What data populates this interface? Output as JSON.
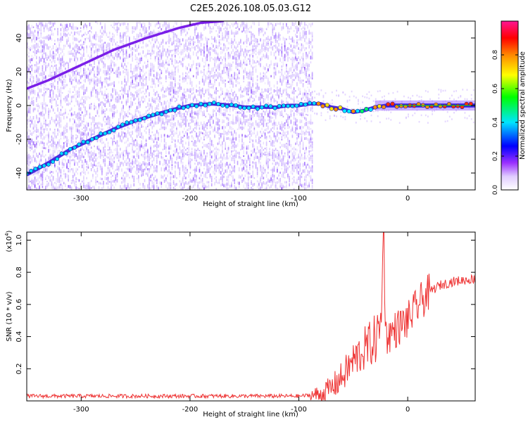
{
  "title": "C2E5.2026.108.05.03.G12",
  "chart_data": [
    {
      "type": "heatmap",
      "xlabel": "Height of straight line (km)",
      "ylabel": "Frequency (Hz)",
      "xlim": [
        -350,
        62
      ],
      "ylim": [
        -50,
        50
      ],
      "x_ticks": [
        -300,
        -200,
        -100,
        0
      ],
      "y_ticks": [
        -40,
        -20,
        0,
        20,
        40
      ],
      "colorbar": {
        "label": "Normalized spectral amplitude",
        "range": [
          0,
          1
        ],
        "ticks": [
          0.0,
          0.2,
          0.4,
          0.6,
          0.8
        ],
        "colors": [
          "#ffffff",
          "#c9a8ff",
          "#8a2be2",
          "#0000ff",
          "#00e5ff",
          "#00ff00",
          "#ffff00",
          "#ff8800",
          "#ff0000",
          "#ff1493"
        ]
      },
      "main_trace": {
        "x": [
          -350,
          -330,
          -310,
          -290,
          -270,
          -250,
          -230,
          -210,
          -200,
          -190,
          -180,
          -170,
          -160,
          -150,
          -140,
          -130,
          -120,
          -110,
          -100,
          -90,
          -80,
          -70,
          -60,
          -50,
          -40,
          -30,
          -20,
          -10,
          0,
          20,
          40,
          62
        ],
        "y": [
          -41,
          -34,
          -26,
          -20,
          -14,
          -9,
          -5,
          -1.5,
          0,
          0.5,
          1,
          0.5,
          0,
          -1,
          -1,
          -1,
          -1,
          0,
          0,
          1,
          1,
          -1,
          -2,
          -4,
          -3,
          -1,
          0,
          0,
          0,
          0,
          0,
          0
        ]
      },
      "alias_trace": {
        "x": [
          -350,
          -330,
          -300,
          -270,
          -240,
          -210,
          -190,
          -170
        ],
        "y": [
          10,
          15,
          24,
          33,
          40,
          46,
          49,
          50
        ]
      }
    },
    {
      "type": "line",
      "xlabel": "Height of straight line (km)",
      "ylabel": "SNR (10 * v/v)",
      "y_multiplier": "(x10",
      "y_multiplier_exp": "4",
      "y_multiplier_close": ")",
      "xlim": [
        -350,
        62
      ],
      "ylim": [
        0,
        1.05
      ],
      "x_ticks": [
        -300,
        -200,
        -100,
        0
      ],
      "y_ticks": [
        0.2,
        0.4,
        0.6,
        0.8,
        1.0
      ],
      "line_color": "#ee3333",
      "series": [
        {
          "x": [
            -350,
            -300,
            -250,
            -200,
            -150,
            -100,
            -80,
            -70,
            -60,
            -50,
            -40,
            -30,
            -25,
            -22,
            -20,
            -10,
            0,
            10,
            20,
            30,
            40,
            50,
            62
          ],
          "y": [
            0.03,
            0.03,
            0.03,
            0.03,
            0.03,
            0.03,
            0.04,
            0.08,
            0.15,
            0.25,
            0.32,
            0.38,
            0.45,
            1.05,
            0.4,
            0.45,
            0.5,
            0.6,
            0.68,
            0.72,
            0.74,
            0.75,
            0.76
          ]
        }
      ]
    }
  ]
}
